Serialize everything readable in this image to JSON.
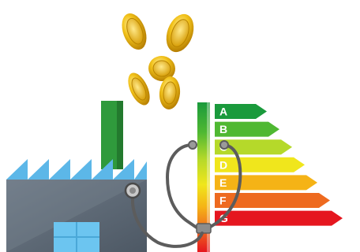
{
  "energy_label": {
    "ratings": [
      {
        "letter": "A",
        "color": "#1a9a3c",
        "bar_color": "#1a9a3c"
      },
      {
        "letter": "B",
        "color": "#4fb832",
        "bar_color": "#4fb832"
      },
      {
        "letter": "C",
        "color": "#b5d92a",
        "bar_color": "#b5d92a"
      },
      {
        "letter": "D",
        "color": "#f0e61c",
        "bar_color": "#f0e61c"
      },
      {
        "letter": "E",
        "color": "#f5b316",
        "bar_color": "#f5b316"
      },
      {
        "letter": "F",
        "color": "#ee6a1f",
        "bar_color": "#ee6a1f"
      },
      {
        "letter": "G",
        "color": "#e5161f",
        "bar_color": "#e5161f"
      }
    ]
  },
  "colors": {
    "factory_body": "#5f6b78",
    "factory_roof": "#5cb7e8",
    "chimney": "#2f9a3c",
    "window": "#6cc5f0",
    "coin": "#e0a800",
    "stethoscope": "#6d6d6d"
  },
  "icons": {
    "factory": "factory-icon",
    "coins": "coins-icon",
    "stethoscope": "stethoscope-icon"
  }
}
